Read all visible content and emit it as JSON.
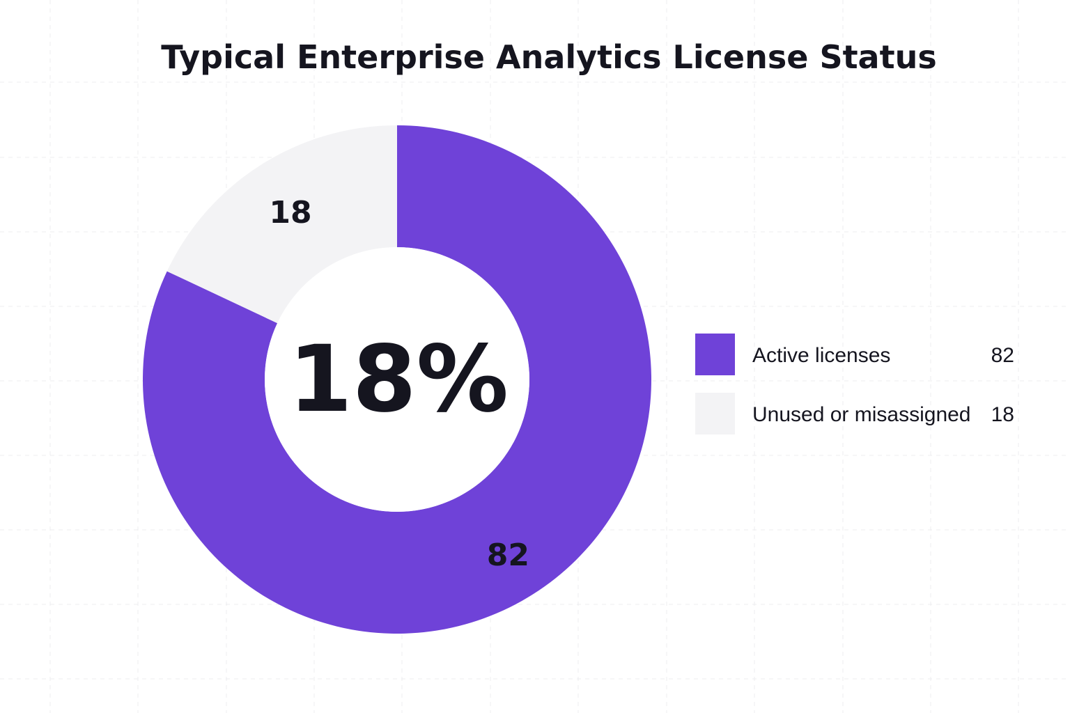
{
  "chart_data": {
    "type": "pie",
    "variant": "donut",
    "title": "Typical Enterprise Analytics License Status",
    "center_label": "18%",
    "categories": [
      "Active licenses",
      "Unused or misassigned"
    ],
    "values": [
      82,
      18
    ],
    "value_labels": [
      "82",
      "18"
    ],
    "colors": [
      "#6f42d8",
      "#f3f3f5"
    ],
    "legend_position": "right",
    "grid": true
  }
}
